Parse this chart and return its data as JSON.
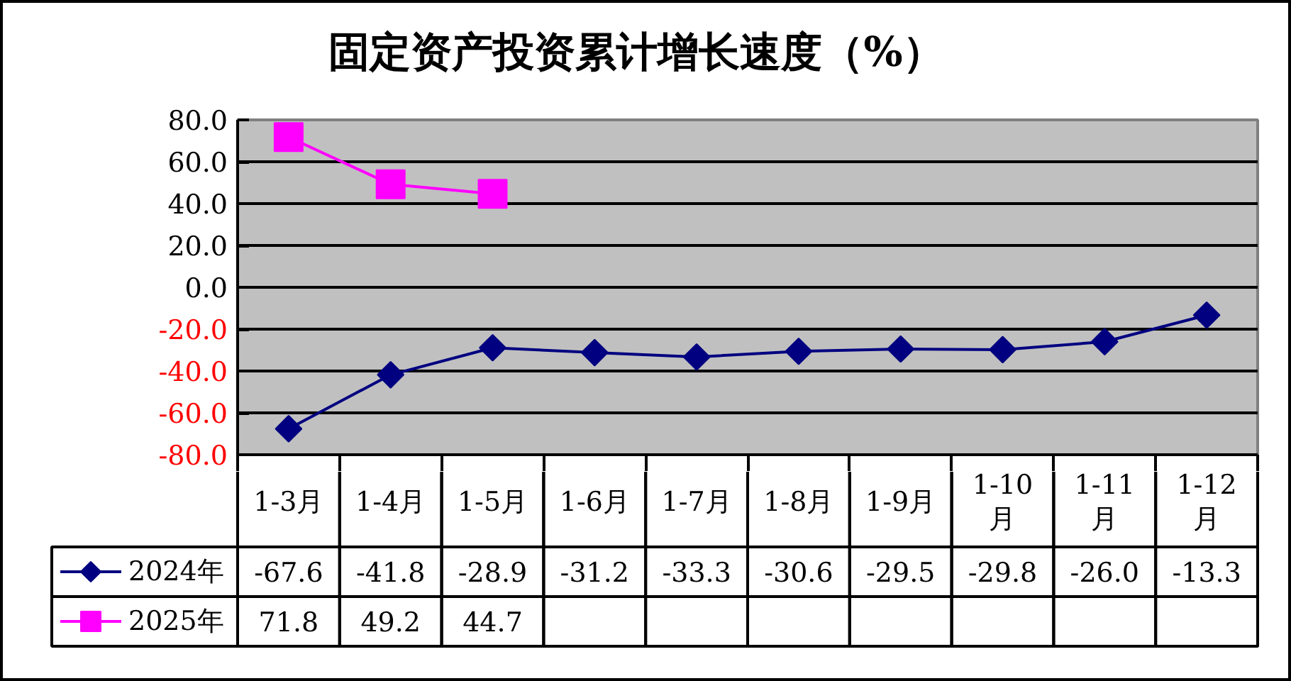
{
  "chart_data": {
    "type": "line",
    "title": "固定资产投资累计增长速度（%）",
    "categories": [
      "1-3月",
      "1-4月",
      "1-5月",
      "1-6月",
      "1-7月",
      "1-8月",
      "1-9月",
      "1-10月",
      "1-11月",
      "1-12月"
    ],
    "series": [
      {
        "name": "2024年",
        "color": "#000080",
        "marker": "diamond",
        "values": [
          -67.6,
          -41.8,
          -28.9,
          -31.2,
          -33.3,
          -30.6,
          -29.5,
          -29.8,
          -26.0,
          -13.3
        ],
        "value_labels": [
          "-67.6",
          "-41.8",
          "-28.9",
          "-31.2",
          "-33.3",
          "-30.6",
          "-29.5",
          "-29.8",
          "-26.0",
          "-13.3"
        ]
      },
      {
        "name": "2025年",
        "color": "#ff00ff",
        "marker": "square",
        "values": [
          71.8,
          49.2,
          44.7,
          null,
          null,
          null,
          null,
          null,
          null,
          null
        ],
        "value_labels": [
          "71.8",
          "49.2",
          "44.7",
          null,
          null,
          null,
          null,
          null,
          null,
          null
        ]
      }
    ],
    "ylim": [
      -80,
      80
    ],
    "yticks": [
      {
        "value": 80,
        "label": "80.0"
      },
      {
        "value": 60,
        "label": "60.0"
      },
      {
        "value": 40,
        "label": "40.0"
      },
      {
        "value": 20,
        "label": "20.0"
      },
      {
        "value": 0,
        "label": "0.0"
      },
      {
        "value": -20,
        "label": "-20.0"
      },
      {
        "value": -40,
        "label": "-40.0"
      },
      {
        "value": -60,
        "label": "-60.0"
      },
      {
        "value": -80,
        "label": "-80.0"
      }
    ],
    "grid": "y",
    "legend": "bottom left"
  }
}
